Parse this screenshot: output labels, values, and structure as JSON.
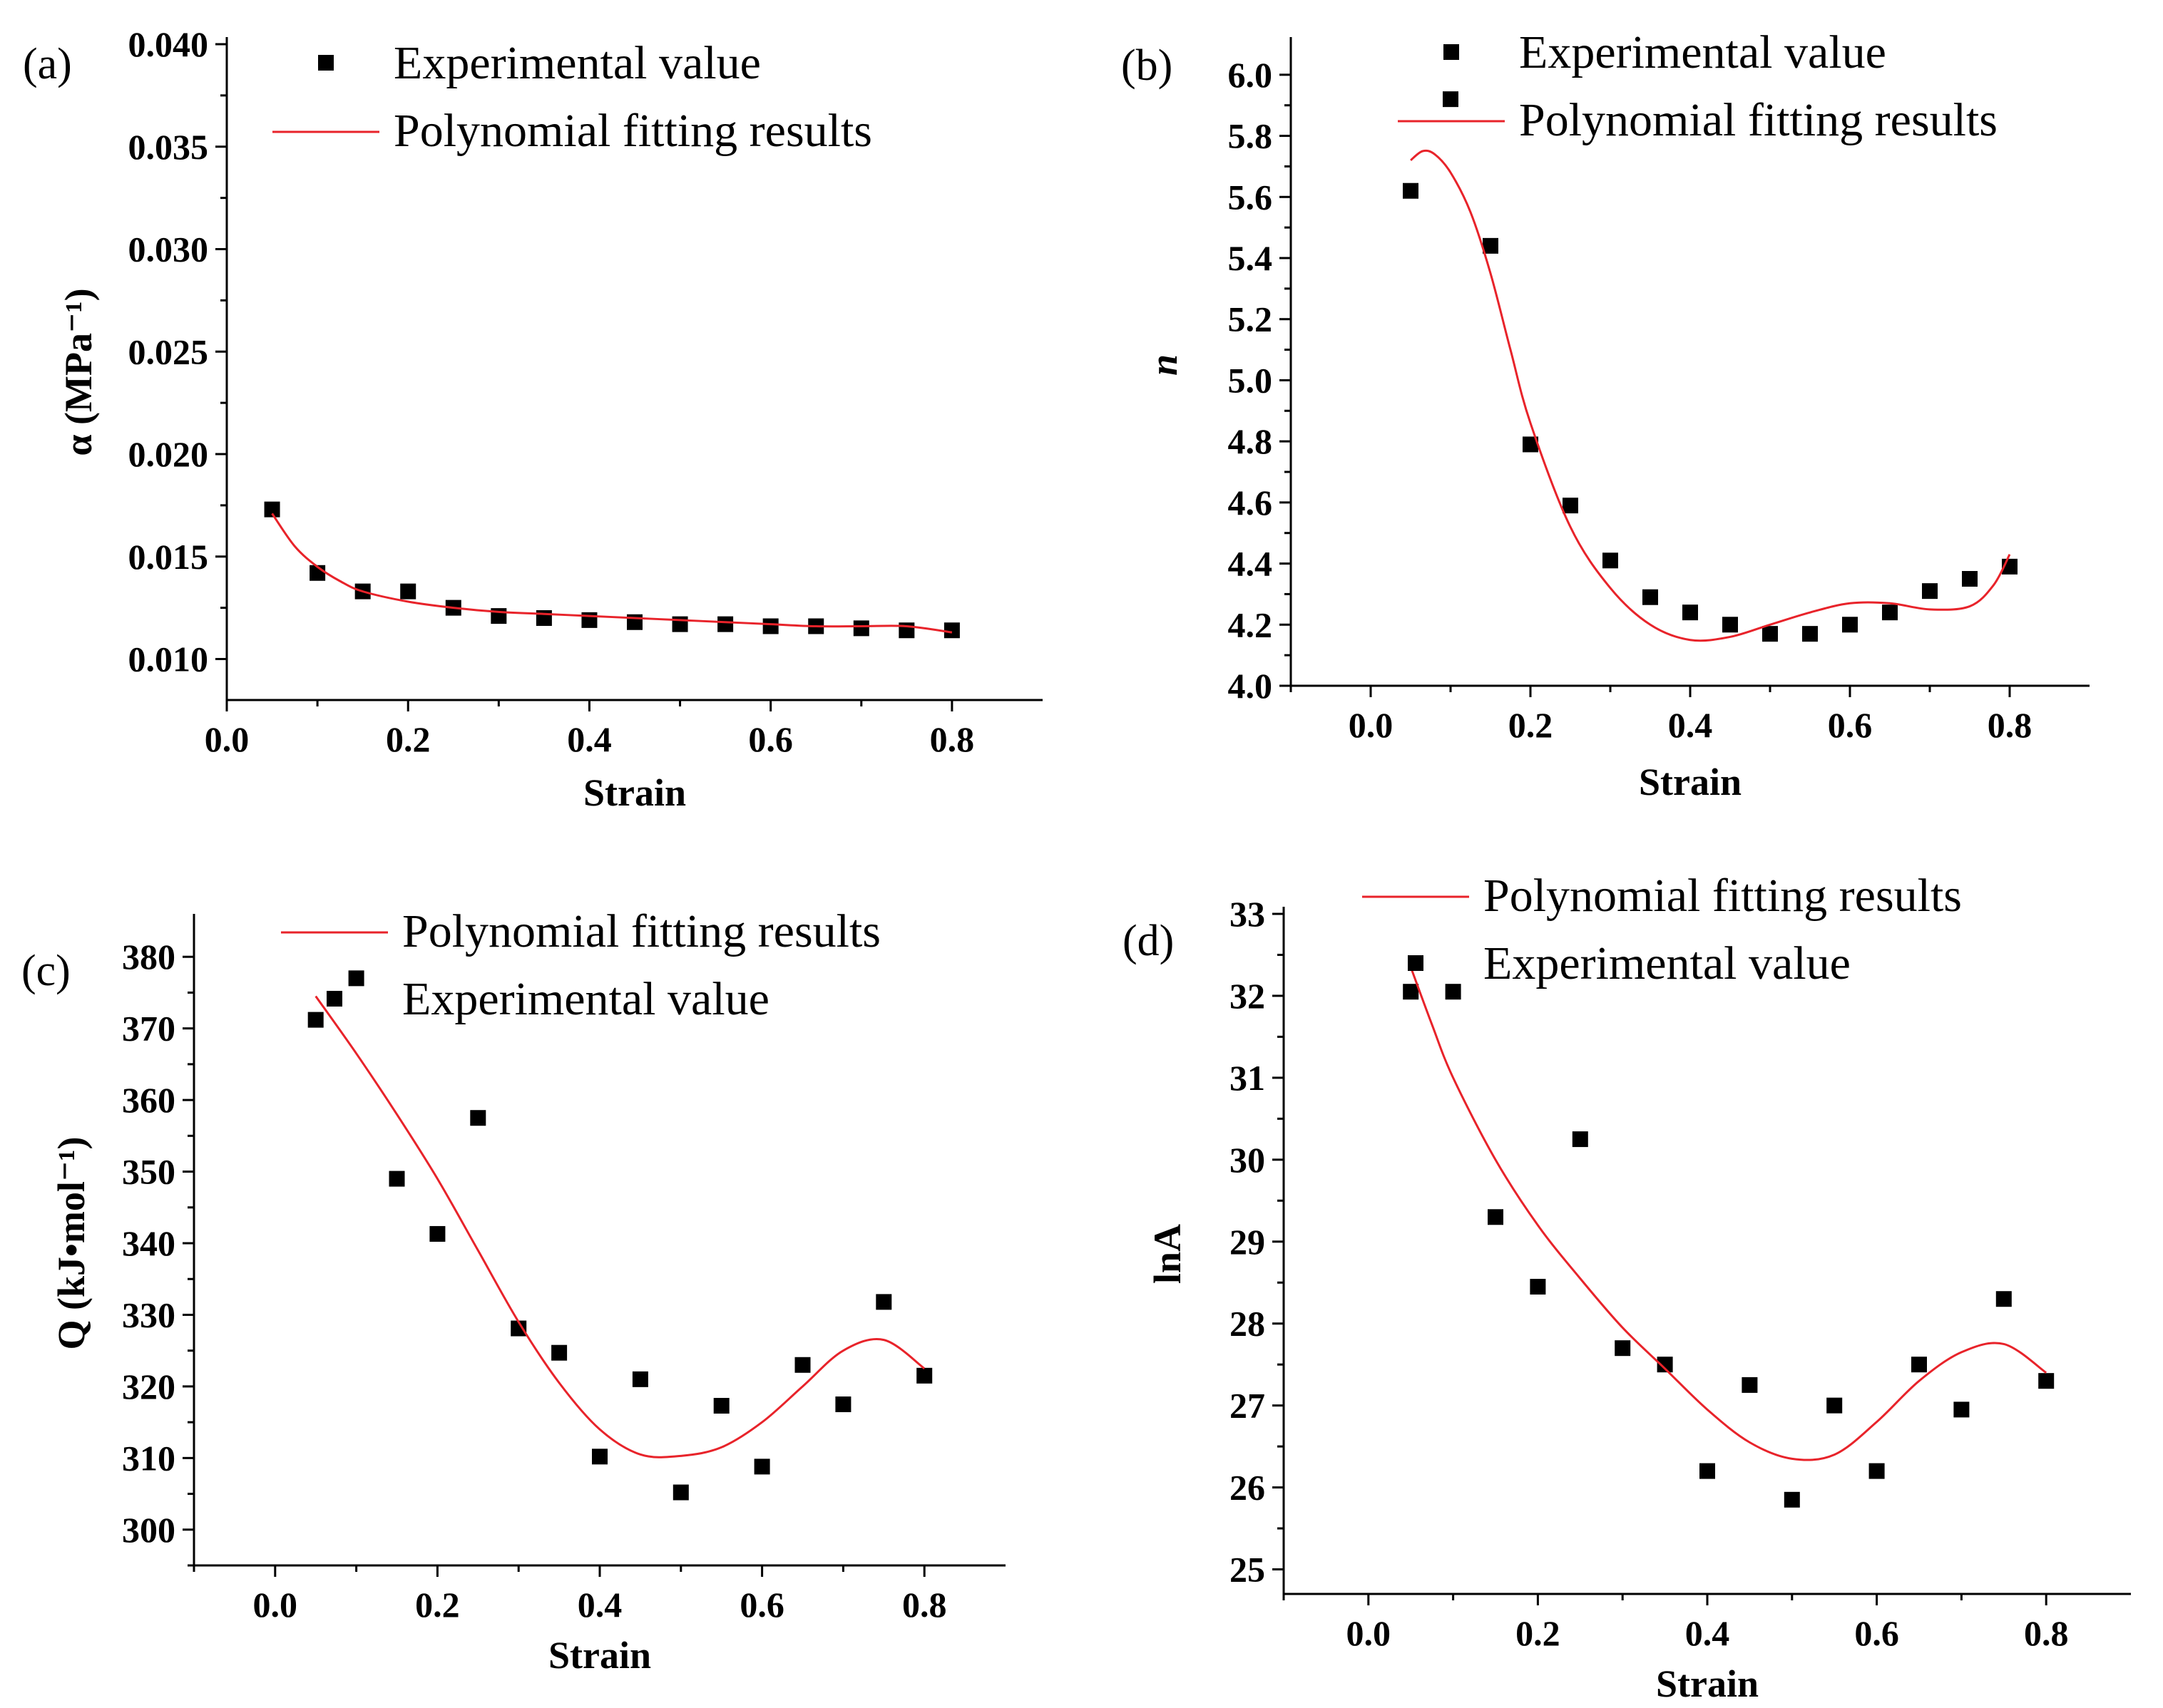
{
  "chart_data": [
    {
      "id": "a",
      "panel_label": "(a)",
      "type": "scatter",
      "xlabel": "Strain",
      "ylabel": "α (MPa⁻¹)",
      "xlim": [
        0.0,
        0.9
      ],
      "ylim": [
        0.008,
        0.04
      ],
      "xticks": [
        "0.0",
        "0.2",
        "0.4",
        "0.6",
        "0.8"
      ],
      "yticks": [
        "0.010",
        "0.015",
        "0.020",
        "0.025",
        "0.030",
        "0.035",
        "0.040"
      ],
      "legend": {
        "position": "top-right",
        "entries": [
          "Experimental value",
          "Polynomial fitting results"
        ]
      },
      "series": [
        {
          "name": "Experimental value",
          "kind": "marker",
          "color": "#000000",
          "x": [
            0.05,
            0.1,
            0.15,
            0.2,
            0.25,
            0.3,
            0.35,
            0.4,
            0.45,
            0.5,
            0.55,
            0.6,
            0.65,
            0.7,
            0.75,
            0.8
          ],
          "y": [
            0.0173,
            0.0142,
            0.0133,
            0.0133,
            0.0125,
            0.0121,
            0.012,
            0.0119,
            0.0118,
            0.0117,
            0.0117,
            0.0116,
            0.0116,
            0.0115,
            0.0114,
            0.0114
          ]
        },
        {
          "name": "Polynomial fitting results",
          "kind": "line",
          "color": "#e8232a",
          "x": [
            0.05,
            0.075,
            0.1,
            0.125,
            0.15,
            0.2,
            0.25,
            0.3,
            0.35,
            0.4,
            0.45,
            0.5,
            0.55,
            0.6,
            0.65,
            0.7,
            0.75,
            0.8
          ],
          "y": [
            0.0171,
            0.0155,
            0.0145,
            0.0138,
            0.0133,
            0.0128,
            0.0125,
            0.0123,
            0.0122,
            0.0121,
            0.012,
            0.0119,
            0.0118,
            0.0117,
            0.0116,
            0.0116,
            0.0116,
            0.0113
          ]
        }
      ]
    },
    {
      "id": "b",
      "panel_label": "(b)",
      "type": "scatter",
      "xlabel": "Strain",
      "ylabel": "n",
      "xlim": [
        -0.1,
        0.9
      ],
      "ylim": [
        4.0,
        6.1
      ],
      "xticks": [
        "0.0",
        "0.2",
        "0.4",
        "0.6",
        "0.8"
      ],
      "yticks": [
        "4.0",
        "4.2",
        "4.4",
        "4.6",
        "4.8",
        "5.0",
        "5.2",
        "5.4",
        "5.6",
        "5.8",
        "6.0"
      ],
      "legend": {
        "position": "top-right",
        "entries": [
          "Experimental value",
          "Polynomial fitting results"
        ]
      },
      "series": [
        {
          "name": "Experimental value",
          "kind": "marker",
          "color": "#000000",
          "x": [
            0.05,
            0.1,
            0.15,
            0.2,
            0.25,
            0.3,
            0.35,
            0.4,
            0.45,
            0.5,
            0.55,
            0.6,
            0.65,
            0.7,
            0.75,
            0.8
          ],
          "y": [
            5.62,
            5.92,
            5.44,
            4.79,
            4.59,
            4.41,
            4.29,
            4.24,
            4.2,
            4.17,
            4.17,
            4.2,
            4.24,
            4.31,
            4.35,
            4.39
          ]
        },
        {
          "name": "Polynomial fitting results",
          "kind": "line",
          "color": "#e8232a",
          "x": [
            0.05,
            0.065,
            0.08,
            0.1,
            0.125,
            0.15,
            0.175,
            0.2,
            0.25,
            0.3,
            0.35,
            0.4,
            0.45,
            0.5,
            0.55,
            0.6,
            0.65,
            0.7,
            0.75,
            0.78,
            0.8
          ],
          "y": [
            5.72,
            5.75,
            5.74,
            5.68,
            5.55,
            5.35,
            5.1,
            4.86,
            4.52,
            4.32,
            4.2,
            4.15,
            4.16,
            4.2,
            4.24,
            4.27,
            4.27,
            4.25,
            4.26,
            4.33,
            4.43
          ]
        }
      ]
    },
    {
      "id": "c",
      "panel_label": "(c)",
      "type": "scatter",
      "xlabel": "Strain",
      "ylabel": "Q (kJ•mol⁻¹)",
      "xlim": [
        -0.1,
        0.9
      ],
      "ylim": [
        295,
        385
      ],
      "xticks": [
        "0.0",
        "0.2",
        "0.4",
        "0.6",
        "0.8"
      ],
      "yticks": [
        "300",
        "310",
        "320",
        "330",
        "340",
        "350",
        "360",
        "370",
        "380"
      ],
      "legend": {
        "position": "top-right",
        "entries": [
          "Polynomial fitting results",
          "Experimental value"
        ]
      },
      "series": [
        {
          "name": "Experimental value",
          "kind": "marker",
          "color": "#000000",
          "x": [
            0.05,
            0.1,
            0.15,
            0.2,
            0.25,
            0.3,
            0.35,
            0.4,
            0.45,
            0.5,
            0.55,
            0.6,
            0.65,
            0.7,
            0.75,
            0.8
          ],
          "y": [
            371.2,
            377.0,
            349.0,
            341.3,
            357.5,
            328.1,
            324.7,
            310.2,
            321.0,
            305.2,
            317.3,
            308.8,
            323.0,
            317.5,
            331.8,
            321.5
          ]
        },
        {
          "name": "Polynomial fitting results",
          "kind": "line",
          "color": "#e8232a",
          "x": [
            0.05,
            0.1,
            0.15,
            0.2,
            0.25,
            0.3,
            0.35,
            0.4,
            0.45,
            0.5,
            0.55,
            0.6,
            0.65,
            0.7,
            0.75,
            0.8
          ],
          "y": [
            374.5,
            366.5,
            358.0,
            349.0,
            339.0,
            329.0,
            320.5,
            314.0,
            310.5,
            310.3,
            311.5,
            315.0,
            320.0,
            325.0,
            326.5,
            322.5
          ]
        }
      ]
    },
    {
      "id": "d",
      "panel_label": "(d)",
      "type": "scatter",
      "xlabel": "Strain",
      "ylabel": "lnA",
      "xlim": [
        -0.1,
        0.9
      ],
      "ylim": [
        24.7,
        33.0
      ],
      "xticks": [
        "0.0",
        "0.2",
        "0.4",
        "0.6",
        "0.8"
      ],
      "yticks": [
        "25",
        "26",
        "27",
        "28",
        "29",
        "30",
        "31",
        "32",
        "33"
      ],
      "legend": {
        "position": "top-right",
        "entries": [
          "Polynomial fitting results",
          "Experimental value"
        ]
      },
      "series": [
        {
          "name": "Experimental value",
          "kind": "marker",
          "color": "#000000",
          "x": [
            0.05,
            0.1,
            0.15,
            0.2,
            0.25,
            0.3,
            0.35,
            0.4,
            0.45,
            0.5,
            0.55,
            0.6,
            0.65,
            0.7,
            0.75,
            0.8
          ],
          "y": [
            32.05,
            32.05,
            29.3,
            28.45,
            30.25,
            27.7,
            27.5,
            26.2,
            27.25,
            25.85,
            27.0,
            26.2,
            27.5,
            26.95,
            28.3,
            27.3
          ]
        },
        {
          "name": "Polynomial fitting results",
          "kind": "line",
          "color": "#e8232a",
          "x": [
            0.05,
            0.075,
            0.1,
            0.15,
            0.2,
            0.25,
            0.3,
            0.35,
            0.4,
            0.45,
            0.5,
            0.55,
            0.6,
            0.65,
            0.7,
            0.75,
            0.8
          ],
          "y": [
            32.35,
            31.65,
            31.0,
            30.0,
            29.2,
            28.55,
            27.95,
            27.45,
            26.95,
            26.55,
            26.35,
            26.4,
            26.8,
            27.3,
            27.65,
            27.75,
            27.4
          ]
        }
      ]
    }
  ]
}
